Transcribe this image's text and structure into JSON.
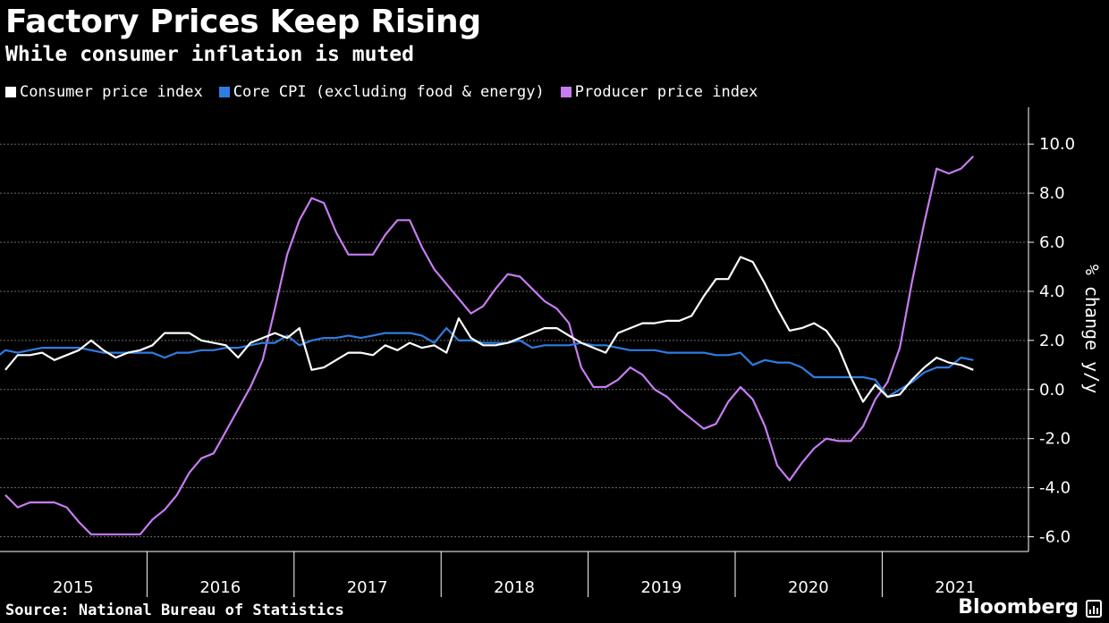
{
  "header": {
    "title": "Factory Prices Keep Rising",
    "subtitle": "While consumer inflation is muted"
  },
  "footer": {
    "source": "Source: National Bureau of Statistics",
    "brand": "Bloomberg"
  },
  "colors": {
    "background": "#000000",
    "cpi": "#ffffff",
    "core": "#2e7de1",
    "ppi": "#c77cf2"
  },
  "chart_data": {
    "type": "line",
    "title": "Factory Prices Keep Rising",
    "subtitle": "While consumer inflation is muted",
    "ylabel": "% change y/y",
    "ylim": [
      -6.6,
      11.5
    ],
    "yticks": [
      10.0,
      8.0,
      6.0,
      4.0,
      2.0,
      0.0,
      -2.0,
      -4.0,
      -6.0
    ],
    "ytick_labels": [
      "10.0",
      "8.0",
      "6.0",
      "4.0",
      "2.0",
      "0.0",
      "-2.0",
      "-4.0",
      "-6.0"
    ],
    "x_categories": [
      "2015",
      "2016",
      "2017",
      "2018",
      "2019",
      "2020",
      "2021"
    ],
    "x_range": [
      "2015-01",
      "2021-05"
    ],
    "grid": true,
    "legend": "top-left",
    "series": [
      {
        "name": "Consumer price index",
        "color": "#ffffff",
        "values": [
          0.8,
          1.4,
          1.4,
          1.5,
          1.2,
          1.4,
          1.6,
          2.0,
          1.6,
          1.3,
          1.5,
          1.6,
          1.8,
          2.3,
          2.3,
          2.3,
          2.0,
          1.9,
          1.8,
          1.3,
          1.9,
          2.1,
          2.3,
          2.1,
          2.5,
          0.8,
          0.9,
          1.2,
          1.5,
          1.5,
          1.4,
          1.8,
          1.6,
          1.9,
          1.7,
          1.8,
          1.5,
          2.9,
          2.1,
          1.8,
          1.8,
          1.9,
          2.1,
          2.3,
          2.5,
          2.5,
          2.2,
          1.9,
          1.7,
          1.5,
          2.3,
          2.5,
          2.7,
          2.7,
          2.8,
          2.8,
          3.0,
          3.8,
          4.5,
          4.5,
          5.4,
          5.2,
          4.3,
          3.3,
          2.4,
          2.5,
          2.7,
          2.4,
          1.7,
          0.5,
          -0.5,
          0.2,
          -0.3,
          -0.2,
          0.4,
          0.9,
          1.3,
          1.1,
          1.0,
          0.8
        ],
        "x_start": "2015-01"
      },
      {
        "name": "Core CPI (excluding food & energy)",
        "color": "#2e7de1",
        "values": [
          1.2,
          1.6,
          1.5,
          1.6,
          1.7,
          1.7,
          1.7,
          1.7,
          1.6,
          1.5,
          1.5,
          1.5,
          1.5,
          1.5,
          1.3,
          1.5,
          1.5,
          1.6,
          1.6,
          1.7,
          1.7,
          1.8,
          1.9,
          1.9,
          2.2,
          1.8,
          2.0,
          2.1,
          2.1,
          2.2,
          2.1,
          2.2,
          2.3,
          2.3,
          2.3,
          2.2,
          1.9,
          2.5,
          2.0,
          2.0,
          1.9,
          1.9,
          1.9,
          2.0,
          1.7,
          1.8,
          1.8,
          1.8,
          1.9,
          1.8,
          1.8,
          1.7,
          1.6,
          1.6,
          1.6,
          1.5,
          1.5,
          1.5,
          1.5,
          1.4,
          1.4,
          1.5,
          1.0,
          1.2,
          1.1,
          1.1,
          0.9,
          0.5,
          0.5,
          0.5,
          0.5,
          0.5,
          0.4,
          -0.3,
          0.0,
          0.3,
          0.7,
          0.9,
          0.9,
          1.3,
          1.2
        ],
        "x_start": "2014-12"
      },
      {
        "name": "Producer price index",
        "color": "#c77cf2",
        "values": [
          -4.3,
          -4.8,
          -4.6,
          -4.6,
          -4.6,
          -4.8,
          -5.4,
          -5.9,
          -5.9,
          -5.9,
          -5.9,
          -5.9,
          -5.3,
          -4.9,
          -4.3,
          -3.4,
          -2.8,
          -2.6,
          -1.7,
          -0.8,
          0.1,
          1.2,
          3.3,
          5.5,
          6.9,
          7.8,
          7.6,
          6.4,
          5.5,
          5.5,
          5.5,
          6.3,
          6.9,
          6.9,
          5.8,
          4.9,
          4.3,
          3.7,
          3.1,
          3.4,
          4.1,
          4.7,
          4.6,
          4.1,
          3.6,
          3.3,
          2.7,
          0.9,
          0.1,
          0.1,
          0.4,
          0.9,
          0.6,
          0.0,
          -0.3,
          -0.8,
          -1.2,
          -1.6,
          -1.4,
          -0.5,
          0.1,
          -0.4,
          -1.5,
          -3.1,
          -3.7,
          -3.0,
          -2.4,
          -2.0,
          -2.1,
          -2.1,
          -1.5,
          -0.4,
          0.3,
          1.7,
          4.4,
          6.8,
          9.0,
          8.8,
          9.0,
          9.5
        ],
        "x_start": "2015-01"
      }
    ]
  }
}
